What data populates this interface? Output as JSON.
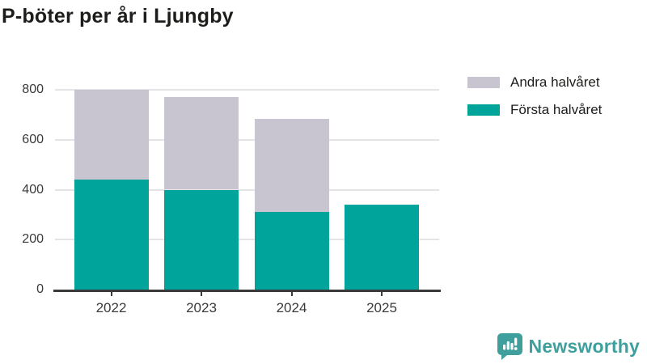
{
  "title": "P-böter per år i Ljungby",
  "chart_data": {
    "type": "bar",
    "stacked": true,
    "title": "P-böter per år i Ljungby",
    "categories": [
      "2022",
      "2023",
      "2024",
      "2025"
    ],
    "series": [
      {
        "name": "Första halvåret",
        "color": "#00a49a",
        "values": [
          440,
          400,
          310,
          340
        ]
      },
      {
        "name": "Andra halvåret",
        "color": "#c8c5d0",
        "values": [
          360,
          370,
          375,
          0
        ]
      }
    ],
    "xlabel": "",
    "ylabel": "",
    "ylim": [
      0,
      800
    ],
    "yticks": [
      0,
      200,
      400,
      600,
      800
    ],
    "grid": true,
    "legend_position": "top-right",
    "legend_order": [
      "Andra halvåret",
      "Första halvåret"
    ]
  },
  "legend": {
    "items": [
      {
        "label": "Andra halvåret",
        "color": "#c8c5d0"
      },
      {
        "label": "Första halvåret",
        "color": "#00a49a"
      }
    ]
  },
  "branding": {
    "logo_text": "Newsworthy",
    "logo_icon": "newsworthy-chart-bubble-icon",
    "brand_color": "#3f9f9d"
  },
  "colors": {
    "first_half": "#00a49a",
    "second_half": "#c8c5d0",
    "axis": "#3a3a3a",
    "grid": "#e4e4e6",
    "title": "#1d1d1b"
  }
}
